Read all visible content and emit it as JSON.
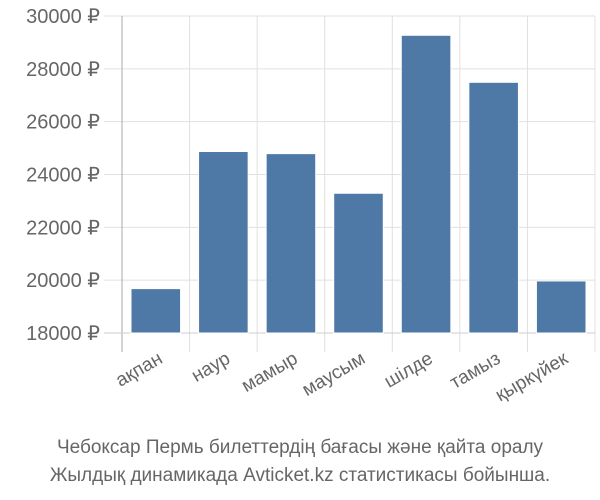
{
  "chart_data": {
    "type": "bar",
    "categories": [
      "ақпан",
      "наур",
      "мамыр",
      "маусым",
      "шілде",
      "тамыз",
      "қыркүйек"
    ],
    "values": [
      19680,
      24870,
      24790,
      23290,
      29270,
      27490,
      19970
    ],
    "yticks": [
      18000,
      20000,
      22000,
      24000,
      26000,
      28000,
      30000
    ],
    "ytick_labels": [
      "18000 ₽",
      "20000 ₽",
      "22000 ₽",
      "24000 ₽",
      "26000 ₽",
      "28000 ₽",
      "30000 ₽"
    ],
    "ylim": [
      18000,
      30000
    ],
    "grid": true,
    "bar_color": "#4e79a7"
  },
  "caption": {
    "line1": "Чебоксар Пермь билеттердің бағасы және қайта оралу",
    "line2": "Жылдық динамикада Avticket.kz статистикасы бойынша."
  }
}
